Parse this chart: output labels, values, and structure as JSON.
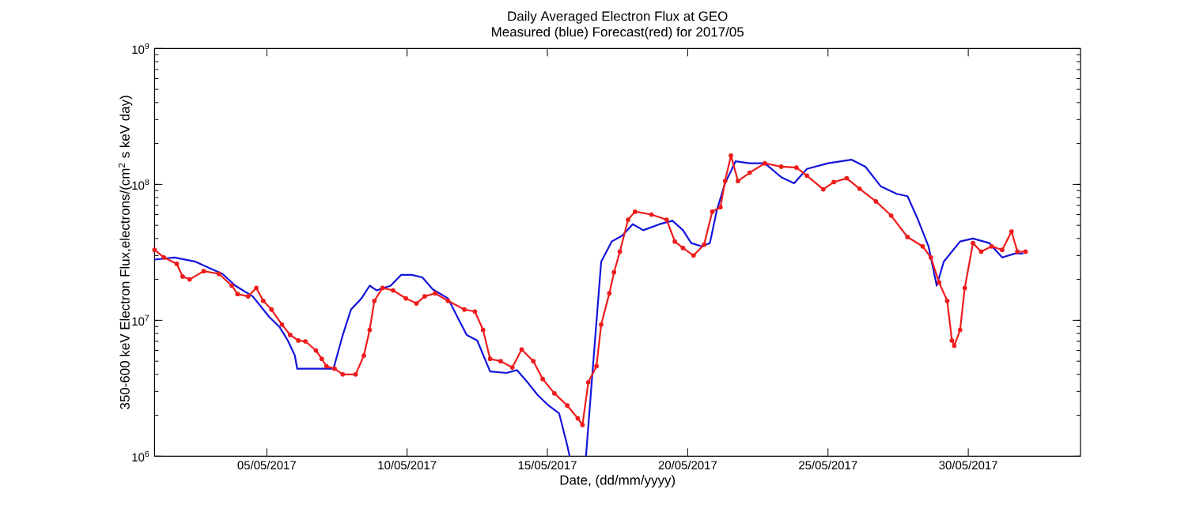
{
  "chart_data": {
    "type": "line",
    "title": "Daily Averaged Electron Flux at GEO",
    "subtitle": "Measured (blue) Forecast(red) for 2017/05",
    "xlabel": "Date, (dd/mm/yyyy)",
    "ylabel": "350-600 keV Electron Flux,electrons/(cm$^{2}$ s keV day)",
    "xlim": [
      "2017-05-01T00:00",
      "2017-06-03T00:00"
    ],
    "xticks": [
      {
        "value": "2017-05-05",
        "label": "05/05/2017"
      },
      {
        "value": "2017-05-10",
        "label": "10/05/2017"
      },
      {
        "value": "2017-05-15",
        "label": "15/05/2017"
      },
      {
        "value": "2017-05-20",
        "label": "20/05/2017"
      },
      {
        "value": "2017-05-25",
        "label": "25/05/2017"
      },
      {
        "value": "2017-05-30",
        "label": "30/05/2017"
      }
    ],
    "ylim": [
      1000000,
      1000000000
    ],
    "yticks": [
      {
        "value": 1000000,
        "label": "10$^{6}$"
      },
      {
        "value": 10000000,
        "label": "10$^{7}$"
      },
      {
        "value": 100000000,
        "label": "10$^{8}$"
      },
      {
        "value": 1000000000,
        "label": "10$^{9}$"
      }
    ],
    "log": "y",
    "grid": false,
    "legend": false,
    "series": [
      {
        "color": "#1414dc",
        "marker": "none",
        "x": [
          "2017-05-01T00:00",
          "2017-05-01T17:00",
          "2017-05-02T11:00",
          "2017-05-03T00:00",
          "2017-05-03T10:00",
          "2017-05-03T21:00",
          "2017-05-04T12:00",
          "2017-05-05T02:00",
          "2017-05-05T11:00",
          "2017-05-05T18:00",
          "2017-05-06T00:00",
          "2017-05-06T02:00",
          "2017-05-06T18:00",
          "2017-05-07T09:00",
          "2017-05-07T17:00",
          "2017-05-08T00:00",
          "2017-05-08T09:00",
          "2017-05-08T16:00",
          "2017-05-08T22:00",
          "2017-05-09T10:00",
          "2017-05-09T19:00",
          "2017-05-10T04:00",
          "2017-05-10T13:00",
          "2017-05-10T22:00",
          "2017-05-11T11:00",
          "2017-05-11T20:00",
          "2017-05-12T03:00",
          "2017-05-12T12:00",
          "2017-05-12T23:00",
          "2017-05-13T13:00",
          "2017-05-13T22:00",
          "2017-05-14T07:00",
          "2017-05-14T16:00",
          "2017-05-15T01:00",
          "2017-05-15T10:00",
          "2017-05-15T17:00",
          "2017-05-15T19:00",
          "2017-05-16T00:00",
          "2017-05-16T09:00",
          "2017-05-16T15:00",
          "2017-05-16T22:00",
          "2017-05-17T07:00",
          "2017-05-17T16:00",
          "2017-05-18T01:00",
          "2017-05-18T10:00",
          "2017-05-19T00:00",
          "2017-05-19T11:00",
          "2017-05-19T20:00",
          "2017-05-20T03:00",
          "2017-05-20T12:00",
          "2017-05-20T19:00",
          "2017-05-21T01:00",
          "2017-05-21T08:00",
          "2017-05-21T17:00",
          "2017-05-22T05:00",
          "2017-05-22T18:00",
          "2017-05-23T08:00",
          "2017-05-23T19:00",
          "2017-05-24T06:00",
          "2017-05-25T00:00",
          "2017-05-25T20:00",
          "2017-05-26T08:00",
          "2017-05-26T21:00",
          "2017-05-27T11:00",
          "2017-05-27T20:00",
          "2017-05-28T05:00",
          "2017-05-28T14:00",
          "2017-05-28T21:00",
          "2017-05-29T03:00",
          "2017-05-29T17:00",
          "2017-05-30T04:00",
          "2017-05-30T18:00",
          "2017-05-31T05:00",
          "2017-05-31T16:00",
          "2017-05-31T23:00"
        ],
        "values": [
          28000000.0,
          29000000.0,
          27000000.0,
          24000000.0,
          22000000.0,
          18000000.0,
          15000000.0,
          10600000.0,
          8900000.0,
          7100000.0,
          5500000.0,
          4400000.0,
          4400000.0,
          4400000.0,
          7800000.0,
          12000000.0,
          14500000.0,
          18000000.0,
          16600000.0,
          18000000.0,
          21600000.0,
          21600000.0,
          20700000.0,
          16900000.0,
          14500000.0,
          10200000.0,
          7800000.0,
          7100000.0,
          4200000.0,
          4100000.0,
          4300000.0,
          3500000.0,
          2800000.0,
          2360000.0,
          2070000.0,
          1200000.0,
          1000000.0,
          null,
          1000000.0,
          4600000.0,
          27000000.0,
          38000000.0,
          42000000.0,
          51000000.0,
          46000000.0,
          51000000.0,
          54000000.0,
          46000000.0,
          37000000.0,
          35000000.0,
          37000000.0,
          65000000.0,
          102000000.0,
          148000000.0,
          143000000.0,
          143000000.0,
          113000000.0,
          102000000.0,
          130000000.0,
          143000000.0,
          152000000.0,
          135000000.0,
          97000000.0,
          85000000.0,
          82000000.0,
          55000000.0,
          35000000.0,
          18000000.0,
          27000000.0,
          38000000.0,
          40000000.0,
          37000000.0,
          29000000.0,
          31000000.0,
          31000000.0
        ]
      },
      {
        "color": "#ee1c1c",
        "marker": "circle",
        "x": [
          "2017-05-01T00:00",
          "2017-05-01T08:00",
          "2017-05-01T19:00",
          "2017-05-02T00:00",
          "2017-05-02T06:00",
          "2017-05-02T18:00",
          "2017-05-03T07:00",
          "2017-05-03T18:00",
          "2017-05-03T23:00",
          "2017-05-04T08:00",
          "2017-05-04T15:00",
          "2017-05-04T21:00",
          "2017-05-05T04:00",
          "2017-05-05T13:00",
          "2017-05-05T20:00",
          "2017-05-06T03:00",
          "2017-05-06T09:00",
          "2017-05-06T18:00",
          "2017-05-06T23:00",
          "2017-05-07T03:00",
          "2017-05-07T10:00",
          "2017-05-07T17:00",
          "2017-05-08T04:00",
          "2017-05-08T11:00",
          "2017-05-08T16:00",
          "2017-05-08T20:00",
          "2017-05-09T03:00",
          "2017-05-09T12:00",
          "2017-05-09T23:00",
          "2017-05-10T08:00",
          "2017-05-10T15:00",
          "2017-05-11T00:00",
          "2017-05-11T11:00",
          "2017-05-12T01:00",
          "2017-05-12T10:00",
          "2017-05-12T17:00",
          "2017-05-12T23:00",
          "2017-05-13T08:00",
          "2017-05-13T18:00",
          "2017-05-14T02:00",
          "2017-05-14T12:00",
          "2017-05-14T20:00",
          "2017-05-15T06:00",
          "2017-05-15T17:00",
          "2017-05-16T02:00",
          "2017-05-16T06:00",
          "2017-05-16T11:00",
          "2017-05-16T18:00",
          "2017-05-16T22:00",
          "2017-05-17T05:00",
          "2017-05-17T09:00",
          "2017-05-17T14:00",
          "2017-05-17T21:00",
          "2017-05-18T03:00",
          "2017-05-18T17:00",
          "2017-05-19T06:00",
          "2017-05-19T13:00",
          "2017-05-19T20:00",
          "2017-05-20T05:00",
          "2017-05-20T14:00",
          "2017-05-20T21:00",
          "2017-05-21T04:00",
          "2017-05-21T08:00",
          "2017-05-21T13:00",
          "2017-05-21T19:00",
          "2017-05-22T05:00",
          "2017-05-22T18:00",
          "2017-05-23T08:00",
          "2017-05-23T21:00",
          "2017-05-24T06:00",
          "2017-05-24T20:00",
          "2017-05-25T05:00",
          "2017-05-25T16:00",
          "2017-05-26T03:00",
          "2017-05-26T17:00",
          "2017-05-27T06:00",
          "2017-05-27T20:00",
          "2017-05-28T09:00",
          "2017-05-28T16:00",
          "2017-05-28T23:00",
          "2017-05-29T06:00",
          "2017-05-29T10:00",
          "2017-05-29T12:00",
          "2017-05-29T17:00",
          "2017-05-29T21:00",
          "2017-05-30T04:00",
          "2017-05-30T11:00",
          "2017-05-30T20:00",
          "2017-05-31T05:00",
          "2017-05-31T13:00",
          "2017-05-31T18:00",
          "2017-06-01T01:00"
        ],
        "values": [
          33000000.0,
          29000000.0,
          26000000.0,
          21000000.0,
          20000000.0,
          23000000.0,
          22000000.0,
          18000000.0,
          15600000.0,
          15000000.0,
          17300000.0,
          13900000.0,
          12000000.0,
          9300000.0,
          7800000.0,
          7100000.0,
          7000000.0,
          6000000.0,
          5200000.0,
          4600000.0,
          4400000.0,
          4000000.0,
          4000000.0,
          5500000.0,
          8500000.0,
          13900000.0,
          17300000.0,
          16600000.0,
          14500000.0,
          13300000.0,
          15000000.0,
          15800000.0,
          13900000.0,
          12000000.0,
          11600000.0,
          8500000.0,
          5200000.0,
          5000000.0,
          4500000.0,
          6100000.0,
          5000000.0,
          3700000.0,
          2900000.0,
          2360000.0,
          1900000.0,
          1700000.0,
          3500000.0,
          4600000.0,
          9300000.0,
          15800000.0,
          22600000.0,
          32000000.0,
          55000000.0,
          63000000.0,
          60000000.0,
          55000000.0,
          38000000.0,
          34000000.0,
          30000000.0,
          36000000.0,
          63000000.0,
          68000000.0,
          106000000.0,
          163000000.0,
          106000000.0,
          122000000.0,
          143000000.0,
          135000000.0,
          133000000.0,
          116000000.0,
          92000000.0,
          104000000.0,
          111000000.0,
          93000000.0,
          75000000.0,
          59000000.0,
          41000000.0,
          35000000.0,
          29000000.0,
          19000000.0,
          13900000.0,
          7100000.0,
          6500000.0,
          8500000.0,
          17300000.0,
          37000000.0,
          32000000.0,
          35000000.0,
          33000000.0,
          45000000.0,
          32000000.0,
          32000000.0
        ]
      }
    ]
  }
}
